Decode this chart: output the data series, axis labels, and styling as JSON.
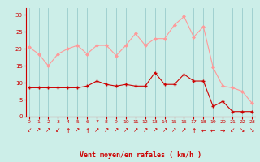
{
  "x": [
    0,
    1,
    2,
    3,
    4,
    5,
    6,
    7,
    8,
    9,
    10,
    11,
    12,
    13,
    14,
    15,
    16,
    17,
    18,
    19,
    20,
    21,
    22,
    23
  ],
  "mean_wind": [
    8.5,
    8.5,
    8.5,
    8.5,
    8.5,
    8.5,
    9.0,
    10.5,
    9.5,
    9.0,
    9.5,
    9.0,
    9.0,
    13.0,
    9.5,
    9.5,
    12.5,
    10.5,
    10.5,
    3.0,
    4.5,
    1.5,
    1.5,
    1.5
  ],
  "gust_wind": [
    20.5,
    18.5,
    15.0,
    18.5,
    20.0,
    21.0,
    18.5,
    21.0,
    21.0,
    18.0,
    21.0,
    24.5,
    21.0,
    23.0,
    23.0,
    27.0,
    29.5,
    23.5,
    26.5,
    14.5,
    9.0,
    8.5,
    7.5,
    4.0
  ],
  "mean_color": "#cc0000",
  "gust_color": "#ff9999",
  "bg_color": "#cceee8",
  "grid_color": "#99cccc",
  "xlabel": "Vent moyen/en rafales ( km/h )",
  "xlabel_color": "#cc0000",
  "tick_color": "#cc0000",
  "ylim": [
    0,
    32
  ],
  "yticks": [
    0,
    5,
    10,
    15,
    20,
    25,
    30
  ],
  "xlim": [
    -0.3,
    23.3
  ],
  "arrows": [
    "↙",
    "↗",
    "↗",
    "↙",
    "↑",
    "↗",
    "↑",
    "↗",
    "↗",
    "↗",
    "↗",
    "↗",
    "↗",
    "↗",
    "↗",
    "↗",
    "↗",
    "↑",
    "←",
    "←",
    "→",
    "↙",
    "↘",
    "↘"
  ]
}
